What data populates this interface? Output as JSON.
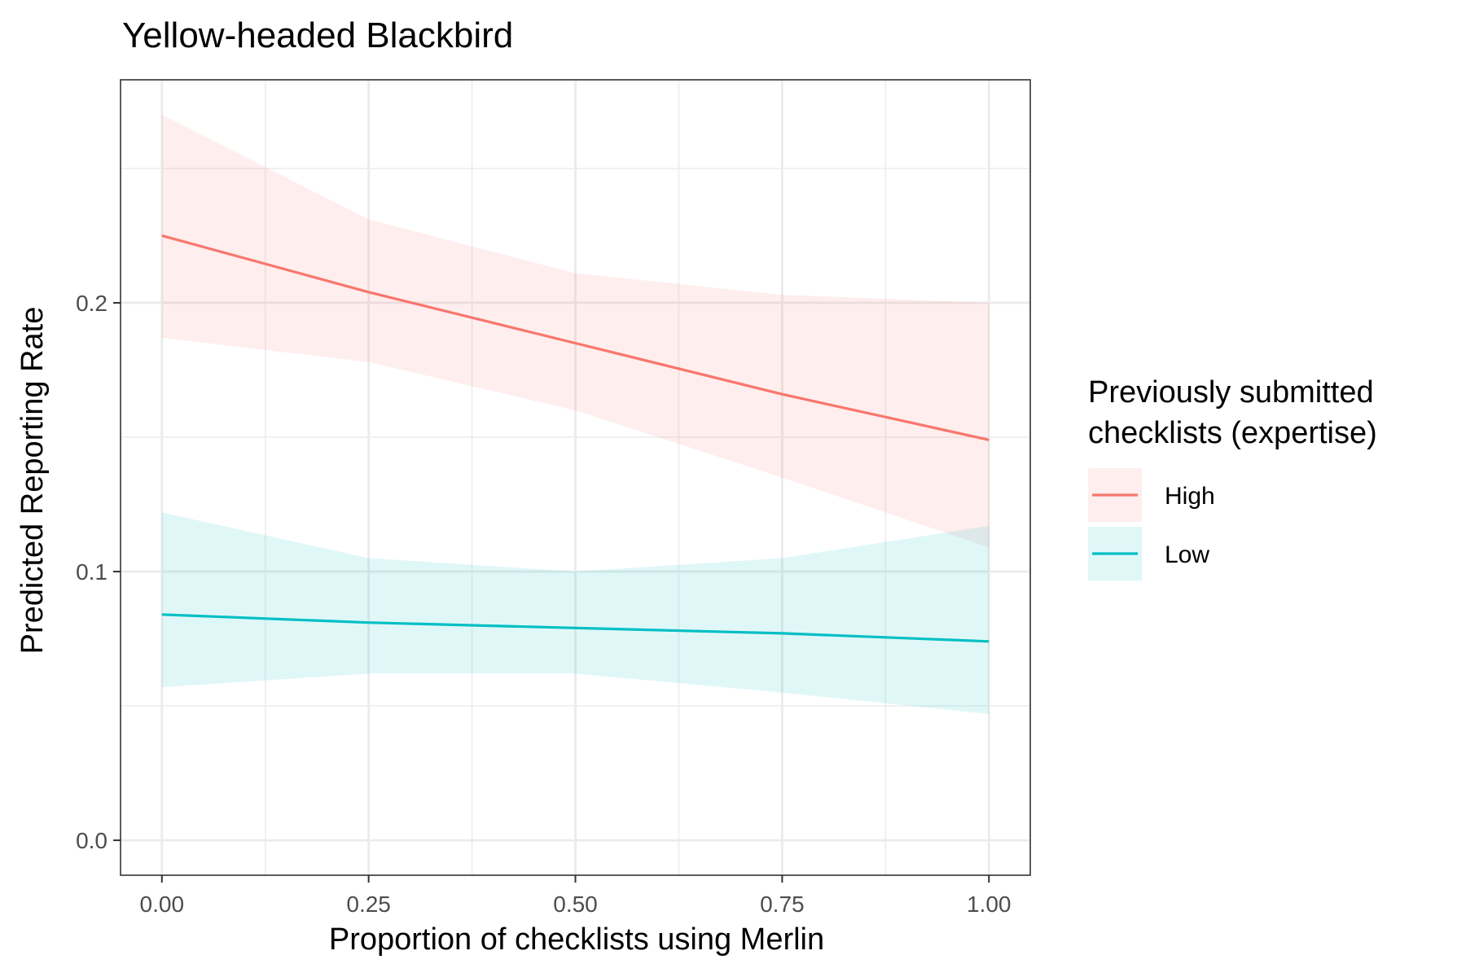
{
  "chart_data": {
    "type": "line",
    "title": "Yellow-headed Blackbird",
    "xlabel": "Proportion of checklists using Merlin",
    "ylabel": "Predicted Reporting Rate",
    "xlim": [
      -0.1,
      2.1
    ],
    "ylim": [
      -0.013,
      0.283
    ],
    "xticks": [
      0.0,
      0.25,
      0.5,
      0.75,
      1.0
    ],
    "xtick_labels": [
      "0.00",
      "0.25",
      "0.50",
      "0.75",
      "1.00"
    ],
    "yticks": [
      0.0,
      0.1,
      0.2
    ],
    "ytick_labels": [
      "0.0",
      "0.1",
      "0.2"
    ],
    "grid": true,
    "legend": {
      "title_lines": [
        "Previously submitted",
        "checklists (expertise)"
      ],
      "position": "right"
    },
    "series": [
      {
        "name": "High",
        "color": "#F8766D",
        "x": [
          0.0,
          0.25,
          0.5,
          0.75,
          1.0
        ],
        "y": [
          0.225,
          0.204,
          0.185,
          0.166,
          0.149
        ],
        "lower": [
          0.187,
          0.178,
          0.16,
          0.135,
          0.109
        ],
        "upper": [
          0.27,
          0.231,
          0.211,
          0.203,
          0.2
        ]
      },
      {
        "name": "Low",
        "color": "#00BFC4",
        "x": [
          0.0,
          0.25,
          0.5,
          0.75,
          1.0
        ],
        "y": [
          0.084,
          0.081,
          0.079,
          0.077,
          0.074
        ],
        "lower": [
          0.057,
          0.062,
          0.062,
          0.055,
          0.047
        ],
        "upper": [
          0.122,
          0.105,
          0.1,
          0.105,
          0.117
        ]
      }
    ]
  }
}
